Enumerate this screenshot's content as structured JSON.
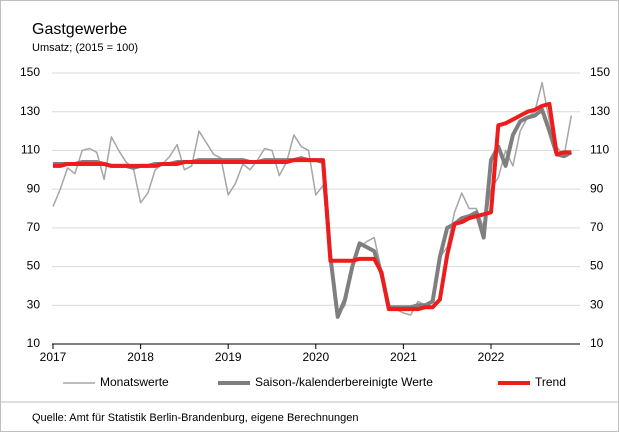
{
  "chart_data": {
    "type": "line",
    "title": "Gastgewerbe",
    "subtitle": "Umsatz; (2015 = 100)",
    "source": "Quelle: Amt für Statistik Berlin-Brandenburg,  eigene Berechnungen",
    "categories": [
      "2017",
      null,
      null,
      null,
      null,
      null,
      null,
      null,
      null,
      null,
      null,
      null,
      "2018",
      null,
      null,
      null,
      null,
      null,
      null,
      null,
      null,
      null,
      null,
      null,
      "2019",
      null,
      null,
      null,
      null,
      null,
      null,
      null,
      null,
      null,
      null,
      null,
      "2020",
      null,
      null,
      null,
      null,
      null,
      null,
      null,
      null,
      null,
      null,
      null,
      "2021",
      null,
      null,
      null,
      null,
      null,
      null,
      null,
      null,
      null,
      null,
      null,
      "2022",
      null,
      null,
      null,
      null,
      null,
      null,
      null,
      null,
      null,
      null,
      null
    ],
    "series": [
      {
        "name": "Monatswerte",
        "color": "#a6a6a6",
        "width": 1.5,
        "values": [
          81,
          90,
          101,
          98,
          110,
          111,
          109,
          95,
          117,
          110,
          104,
          101,
          83,
          88,
          100,
          103,
          107,
          113,
          100,
          102,
          120,
          114,
          108,
          106,
          87,
          93,
          103,
          100,
          105,
          111,
          110,
          97,
          104,
          118,
          112,
          110,
          87,
          92,
          53,
          25,
          30,
          50,
          60,
          63,
          65,
          48,
          28,
          28,
          26,
          25,
          32,
          30,
          33,
          55,
          60,
          78,
          88,
          80,
          80,
          70,
          90,
          96,
          110,
          102,
          120,
          127,
          130,
          145,
          125,
          112,
          107,
          128
        ]
      },
      {
        "name": "Saison-/kalenderbereinigte Werte",
        "color": "#7f7f7f",
        "width": 4,
        "values": [
          103,
          103,
          103,
          103,
          104,
          104,
          104,
          103,
          102,
          102,
          102,
          101,
          102,
          102,
          103,
          103,
          103,
          104,
          104,
          104,
          105,
          105,
          105,
          105,
          105,
          105,
          105,
          104,
          104,
          105,
          105,
          105,
          105,
          105,
          106,
          105,
          105,
          104,
          55,
          24,
          33,
          50,
          62,
          60,
          58,
          46,
          29,
          29,
          29,
          29,
          30,
          30,
          32,
          55,
          70,
          72,
          75,
          76,
          78,
          65,
          105,
          112,
          102,
          118,
          125,
          127,
          128,
          131,
          120,
          108,
          107,
          109
        ]
      },
      {
        "name": "Trend",
        "color": "#ee1c1c",
        "width": 4,
        "values": [
          102,
          102,
          103,
          103,
          103,
          103,
          103,
          103,
          102,
          102,
          102,
          102,
          102,
          102,
          102,
          103,
          103,
          103,
          104,
          104,
          104,
          104,
          104,
          104,
          104,
          104,
          104,
          104,
          104,
          104,
          104,
          104,
          104,
          105,
          105,
          105,
          105,
          105,
          53,
          53,
          53,
          53,
          54,
          54,
          54,
          47,
          28,
          28,
          28,
          28,
          28,
          29,
          29,
          33,
          56,
          72,
          73,
          75,
          76,
          77,
          78,
          123,
          124,
          126,
          128,
          130,
          131,
          133,
          134,
          108,
          109,
          109
        ]
      }
    ],
    "ylim": [
      10,
      150
    ],
    "yticks": [
      10,
      30,
      50,
      70,
      90,
      110,
      130,
      150
    ],
    "y2lim": [
      10,
      150
    ],
    "y2ticks": [
      10,
      30,
      50,
      70,
      90,
      110,
      130,
      150
    ],
    "grid": true,
    "legend": "bottom"
  }
}
